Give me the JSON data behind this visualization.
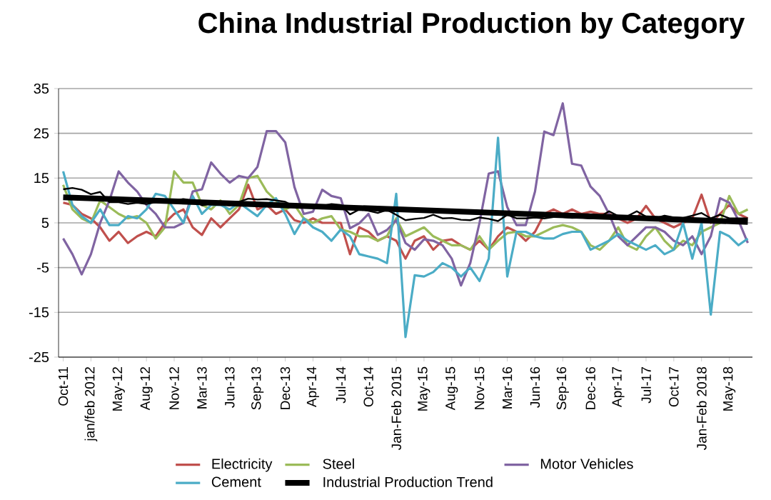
{
  "chart_data": {
    "type": "line",
    "title": "China Industrial Production by Category",
    "categories": [
      "Oct-11",
      null,
      null,
      "jan/feb 2012",
      null,
      null,
      "May-12",
      null,
      null,
      "Aug-12",
      null,
      null,
      "Nov-12",
      null,
      null,
      "Mar-13",
      null,
      null,
      "Jun-13",
      null,
      null,
      "Sep-13",
      null,
      null,
      "Dec-13",
      null,
      null,
      "Apr-14",
      null,
      null,
      "Jul-14",
      null,
      null,
      "Oct-14",
      null,
      null,
      "Jan-Feb 2015",
      null,
      null,
      "May-15",
      null,
      null,
      "Aug-15",
      null,
      null,
      "Nov-15",
      null,
      null,
      "Mar-16",
      null,
      null,
      "Jun-16",
      null,
      null,
      "Sep-16",
      null,
      null,
      "Dec-16",
      null,
      null,
      "Apr-17",
      null,
      null,
      "Jul-17",
      null,
      null,
      "Oct-17",
      null,
      null,
      "Jan-Feb 2018",
      null,
      null,
      "May-18",
      null,
      null
    ],
    "series": [
      {
        "name": "Electricity",
        "color": "#c0504d",
        "values": [
          9.5,
          9,
          7,
          6,
          4,
          1,
          3,
          0.5,
          2,
          3,
          2,
          5,
          7,
          8,
          4,
          2.3,
          6,
          4,
          6,
          8,
          13.5,
          8,
          9,
          7,
          8,
          5.6,
          5,
          6,
          5,
          5,
          5,
          -2,
          4,
          3,
          1,
          2,
          1,
          -3,
          1,
          2,
          -1,
          1,
          1.3,
          0,
          -1,
          1,
          -1,
          2,
          4,
          3,
          1,
          3,
          7,
          8,
          7,
          8,
          7,
          7.5,
          7,
          7,
          6,
          5,
          6,
          8.8,
          6,
          5,
          4,
          5,
          6,
          11.3,
          5,
          7,
          9,
          7,
          6
        ]
      },
      {
        "name": "Steel",
        "color": "#9bbb59",
        "values": [
          13.5,
          8,
          6,
          5,
          10,
          8.5,
          7,
          6,
          6.5,
          5,
          1.5,
          4,
          16.5,
          14,
          14,
          9,
          8,
          10,
          7,
          9,
          15,
          15.5,
          12,
          10,
          8,
          9,
          6,
          5,
          6,
          6.5,
          3.5,
          3,
          2,
          2,
          1,
          2,
          6,
          2,
          3,
          4,
          2,
          1,
          0,
          0,
          -1,
          2,
          -1,
          1,
          2.7,
          3,
          2,
          2,
          3,
          4,
          4.5,
          4,
          3,
          0,
          -1,
          1,
          4,
          0,
          -1,
          2,
          4,
          1,
          -1,
          1,
          0,
          3,
          4,
          5,
          11,
          7,
          8
        ]
      },
      {
        "name": "Motor Vehicles",
        "color": "#8064a2",
        "values": [
          1.5,
          -2,
          -6.5,
          -2,
          5,
          10,
          16.5,
          14,
          12,
          9,
          7,
          4,
          4,
          5,
          12,
          12.5,
          18.5,
          16,
          14,
          15.5,
          15,
          17.5,
          25.5,
          25.5,
          23,
          13,
          7,
          7.5,
          12.4,
          11,
          10.5,
          3.8,
          4.9,
          7,
          2.3,
          3.4,
          5.6,
          0.5,
          -1,
          1.3,
          1,
          0,
          -3,
          -9,
          -4,
          5,
          16,
          16.5,
          8.5,
          4.5,
          4.5,
          12,
          25.4,
          24.6,
          31.7,
          18.2,
          17.8,
          13.1,
          11,
          7,
          2,
          0,
          2,
          4,
          4,
          3,
          1,
          0,
          2,
          -2,
          2,
          10.5,
          9.5,
          5.5,
          0.5
        ]
      },
      {
        "name": "Cement",
        "color": "#4bacc6",
        "values": [
          16.5,
          9,
          6.5,
          5,
          8,
          4.5,
          4.5,
          6.5,
          6,
          8,
          11.5,
          11,
          8,
          5,
          11,
          7,
          9,
          9,
          8,
          9.5,
          8,
          6.5,
          9,
          10.5,
          7,
          2.5,
          6,
          4,
          3,
          1,
          3.5,
          2,
          -2,
          -2.5,
          -3,
          -4,
          11.5,
          -20.5,
          -6.7,
          -7,
          -6,
          -4,
          -5,
          -7,
          -5,
          -8,
          -3,
          24,
          -7,
          3,
          3,
          2,
          1.5,
          1.5,
          2.5,
          3,
          3,
          -1,
          0,
          1,
          2.5,
          1,
          0,
          -1,
          0,
          -2,
          -1,
          5,
          -3,
          5,
          -15.5,
          3,
          2,
          0,
          1.5
        ]
      },
      {
        "color": "#000000",
        "values": [
          12.5,
          12.8,
          12.4,
          11.4,
          11.9,
          9.6,
          9.6,
          9.2,
          9.5,
          9.2,
          9.6,
          10.2,
          10.1,
          10.3,
          10,
          8.9,
          9.3,
          9.2,
          8.9,
          9.7,
          10.4,
          10.2,
          10.3,
          10,
          9.7,
          8.6,
          8.8,
          8.7,
          8.8,
          9.2,
          9,
          6.9,
          8,
          7.7,
          7.2,
          7.9,
          6.8,
          5.6,
          5.9,
          6.1,
          6.8,
          6,
          6.1,
          5.7,
          5.6,
          6.2,
          5.9,
          5.4,
          6.8,
          6,
          6,
          6.2,
          6,
          6.3,
          6.3,
          6.1,
          6.2,
          6,
          6.3,
          7.6,
          6.5,
          6.5,
          7.6,
          6.4,
          6,
          6.6,
          6.2,
          6.1,
          6.6,
          7.2,
          6,
          6.8,
          6,
          6,
          6
        ]
      },
      {
        "name": "Industrial Production Trend",
        "color": "#000000",
        "values": [
          10.7,
          null,
          null,
          null,
          null,
          null,
          null,
          null,
          null,
          null,
          null,
          null,
          null,
          null,
          null,
          null,
          null,
          null,
          null,
          null,
          null,
          null,
          null,
          null,
          null,
          null,
          null,
          null,
          null,
          null,
          null,
          null,
          null,
          null,
          null,
          null,
          null,
          null,
          null,
          null,
          null,
          null,
          null,
          null,
          null,
          null,
          null,
          null,
          null,
          null,
          null,
          null,
          null,
          null,
          null,
          null,
          null,
          null,
          null,
          null,
          null,
          null,
          null,
          null,
          null,
          null,
          null,
          null,
          null,
          null,
          null,
          null,
          null,
          null,
          5.2
        ]
      }
    ],
    "ylim": [
      -25,
      35
    ],
    "yticks": [
      35,
      25,
      15,
      5,
      -5,
      -15,
      -25
    ],
    "grid": "y",
    "legend": "bottom"
  }
}
